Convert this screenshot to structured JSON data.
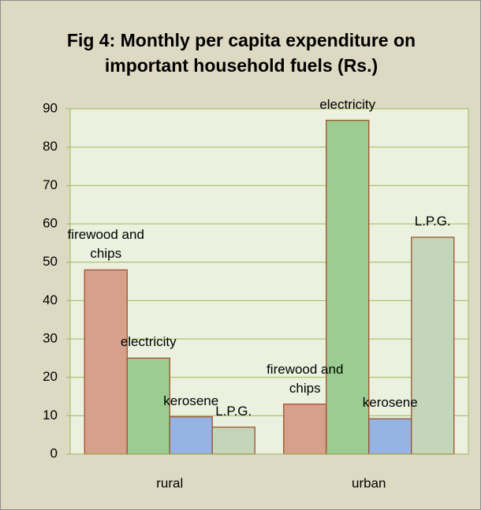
{
  "chart_data": {
    "type": "bar",
    "title": "Fig 4: Monthly per capita expenditure on important household fuels (Rs.)",
    "categories": [
      "rural",
      "urban"
    ],
    "series": [
      {
        "name": "firewood and chips",
        "color": "#d6a08c",
        "values": [
          48,
          13
        ]
      },
      {
        "name": "electricity",
        "color": "#9bcc92",
        "values": [
          25,
          87
        ]
      },
      {
        "name": "kerosene",
        "color": "#95b3e3",
        "values": [
          9.7,
          9.2
        ]
      },
      {
        "name": "L.P.G.",
        "color": "#c3d5bb",
        "values": [
          7,
          56.5
        ]
      }
    ],
    "ylim": [
      0,
      90
    ],
    "yticks": [
      0,
      10,
      20,
      30,
      40,
      50,
      60,
      70,
      80,
      90
    ],
    "grid": true
  }
}
